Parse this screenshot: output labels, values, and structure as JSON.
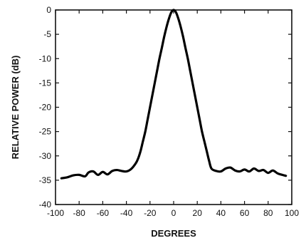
{
  "chart_data": {
    "type": "line",
    "title": "",
    "xlabel": "DEGREES",
    "ylabel": "RELATIVE POWER (dB)",
    "xlim": [
      -100,
      100
    ],
    "ylim": [
      -40,
      0
    ],
    "xticks": [
      -100,
      -80,
      -60,
      -40,
      -20,
      0,
      20,
      40,
      60,
      80,
      100
    ],
    "yticks": [
      0,
      -5,
      -10,
      -15,
      -20,
      -25,
      -30,
      -35,
      -40
    ],
    "xtick_labels": [
      "-100",
      "-80",
      "-60",
      "-40",
      "-20",
      "0",
      "20",
      "40",
      "60",
      "80",
      "100"
    ],
    "ytick_labels": [
      "0",
      "-5",
      "-10",
      "-15",
      "-20",
      "-25",
      "-30",
      "-35",
      "-40"
    ],
    "grid": false,
    "legend": "none",
    "line_color": "#000000",
    "series": [
      {
        "x": [
          -95,
          -90,
          -85,
          -80,
          -75,
          -72,
          -68,
          -64,
          -60,
          -56,
          -52,
          -48,
          -44,
          -40,
          -36,
          -32,
          -30,
          -28,
          -26,
          -24,
          -22,
          -20,
          -18,
          -16,
          -14,
          -12,
          -10,
          -8,
          -6,
          -4,
          -2,
          0,
          2,
          4,
          6,
          8,
          10,
          12,
          14,
          16,
          18,
          20,
          22,
          24,
          26,
          28,
          30,
          32,
          36,
          40,
          44,
          48,
          52,
          56,
          60,
          64,
          68,
          72,
          76,
          80,
          84,
          88,
          92,
          95
        ],
        "y": [
          -34.6,
          -34.4,
          -34.0,
          -33.9,
          -34.2,
          -33.4,
          -33.2,
          -33.9,
          -33.3,
          -33.8,
          -33.1,
          -32.9,
          -33.1,
          -33.2,
          -32.7,
          -31.5,
          -30.5,
          -29.0,
          -27.0,
          -25.0,
          -22.5,
          -20.0,
          -17.5,
          -15.0,
          -12.5,
          -10.0,
          -7.8,
          -5.5,
          -3.5,
          -1.8,
          -0.5,
          0.0,
          -0.5,
          -1.8,
          -3.5,
          -5.5,
          -7.8,
          -10.0,
          -12.5,
          -15.0,
          -17.5,
          -20.0,
          -22.5,
          -25.0,
          -27.0,
          -29.0,
          -31.0,
          -32.6,
          -33.1,
          -33.2,
          -32.6,
          -32.4,
          -33.0,
          -33.2,
          -32.8,
          -33.2,
          -32.6,
          -33.1,
          -32.9,
          -33.5,
          -33.0,
          -33.6,
          -33.9,
          -34.1
        ]
      }
    ]
  }
}
